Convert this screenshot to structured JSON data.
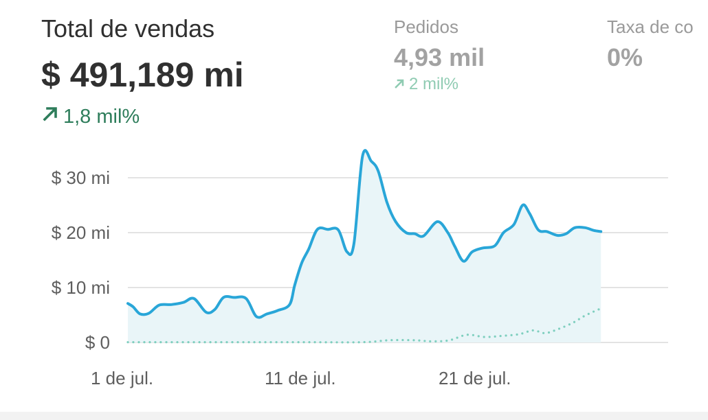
{
  "metrics": {
    "total_sales": {
      "label": "Total de vendas",
      "value": "$ 491,189 mi",
      "change": "1,8 mil%",
      "change_icon": "arrow-up-right-icon",
      "change_color": "#2e7d5b"
    },
    "orders": {
      "label": "Pedidos",
      "value": "4,93 mil",
      "change": "2 mil%",
      "change_icon": "arrow-up-right-icon",
      "change_color": "#8fcbb2"
    },
    "conversion": {
      "label": "Taxa de co",
      "value": "0%"
    }
  },
  "chart_data": {
    "type": "line",
    "title": "",
    "xlabel": "",
    "ylabel": "",
    "x_ticks": [
      {
        "day": 0,
        "label": "1 de jul."
      },
      {
        "day": 10,
        "label": "11 de jul."
      },
      {
        "day": 20,
        "label": "21 de jul."
      }
    ],
    "y_ticks": [
      {
        "value": 0,
        "label": "$ 0"
      },
      {
        "value": 10,
        "label": "$ 10 mi"
      },
      {
        "value": 20,
        "label": "$ 20 mi"
      },
      {
        "value": 30,
        "label": "$ 30 mi"
      }
    ],
    "ylim": [
      0,
      35
    ],
    "grid": true,
    "series": [
      {
        "style": "solid",
        "color": "#29a6d8",
        "fill": "#e9f5f8",
        "points": [
          [
            0,
            7.1
          ],
          [
            0.3,
            6.5
          ],
          [
            0.7,
            5.2
          ],
          [
            1.2,
            5.3
          ],
          [
            1.8,
            6.8
          ],
          [
            2.5,
            6.9
          ],
          [
            3.2,
            7.3
          ],
          [
            3.8,
            8.0
          ],
          [
            4.5,
            5.5
          ],
          [
            5.0,
            6.0
          ],
          [
            5.5,
            8.2
          ],
          [
            6.1,
            8.2
          ],
          [
            6.8,
            8.0
          ],
          [
            7.4,
            4.7
          ],
          [
            8.0,
            5.2
          ],
          [
            8.6,
            5.8
          ],
          [
            9.3,
            6.9
          ],
          [
            9.6,
            10.5
          ],
          [
            10.0,
            14.5
          ],
          [
            10.4,
            17.0
          ],
          [
            10.9,
            20.6
          ],
          [
            11.5,
            20.6
          ],
          [
            12.1,
            20.5
          ],
          [
            12.6,
            16.5
          ],
          [
            13.0,
            18.0
          ],
          [
            13.5,
            34.0
          ],
          [
            14.0,
            33.0
          ],
          [
            14.4,
            31.2
          ],
          [
            14.9,
            25.5
          ],
          [
            15.4,
            22.0
          ],
          [
            16.0,
            20.0
          ],
          [
            16.5,
            19.8
          ],
          [
            17.0,
            19.4
          ],
          [
            17.8,
            22.0
          ],
          [
            18.4,
            20.0
          ],
          [
            18.8,
            17.5
          ],
          [
            19.3,
            14.8
          ],
          [
            19.8,
            16.5
          ],
          [
            20.4,
            17.2
          ],
          [
            21.1,
            17.6
          ],
          [
            21.6,
            20.0
          ],
          [
            22.2,
            21.5
          ],
          [
            22.7,
            25.0
          ],
          [
            23.1,
            23.5
          ],
          [
            23.6,
            20.5
          ],
          [
            24.1,
            20.2
          ],
          [
            24.7,
            19.5
          ],
          [
            25.2,
            19.8
          ],
          [
            25.7,
            20.9
          ],
          [
            26.3,
            20.9
          ],
          [
            26.8,
            20.4
          ],
          [
            27.2,
            20.2
          ]
        ]
      },
      {
        "style": "dotted",
        "color": "#7fcfbf",
        "points": [
          [
            0,
            0.05
          ],
          [
            5,
            0.05
          ],
          [
            10,
            0.05
          ],
          [
            13.5,
            0.05
          ],
          [
            15.0,
            0.4
          ],
          [
            16.5,
            0.4
          ],
          [
            17.5,
            0.2
          ],
          [
            18.5,
            0.4
          ],
          [
            19.5,
            1.4
          ],
          [
            20.5,
            1.0
          ],
          [
            21.5,
            1.2
          ],
          [
            22.5,
            1.5
          ],
          [
            23.3,
            2.2
          ],
          [
            24.0,
            1.7
          ],
          [
            24.8,
            2.5
          ],
          [
            25.6,
            3.6
          ],
          [
            26.3,
            4.9
          ],
          [
            27.2,
            6.2
          ]
        ]
      }
    ]
  }
}
